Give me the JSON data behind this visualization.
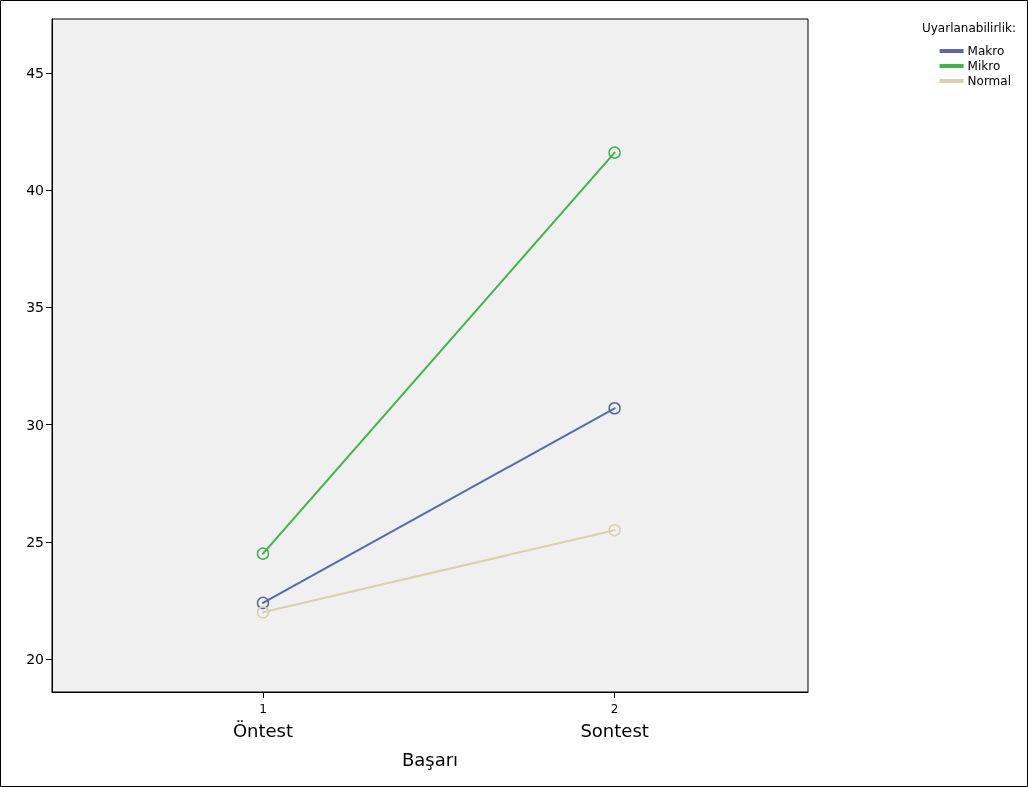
{
  "chart_data": {
    "type": "line",
    "xlabel": "Başarı",
    "legend_title": "Uyarlanabilirlik:",
    "x": [
      1,
      2
    ],
    "xlim": [
      0.4,
      2.55
    ],
    "xticks": [
      {
        "value": 1,
        "label": "1\nÖntest"
      },
      {
        "value": 2,
        "label": "2\nSontest"
      }
    ],
    "ylim": [
      18.6,
      47.3
    ],
    "yticks": [
      20,
      25,
      30,
      35,
      40,
      45
    ],
    "series": [
      {
        "name": "Makro",
        "color": "#5b68a8",
        "values": [
          22.4,
          30.7
        ]
      },
      {
        "name": "Mikro",
        "color": "#3fb54a",
        "values": [
          24.5,
          41.6
        ]
      },
      {
        "name": "Normal",
        "color": "#d8d1ae",
        "values": [
          22.0,
          25.5
        ]
      }
    ],
    "grid": false,
    "legend": "top right",
    "marker": "circle",
    "line_style": "solid"
  }
}
